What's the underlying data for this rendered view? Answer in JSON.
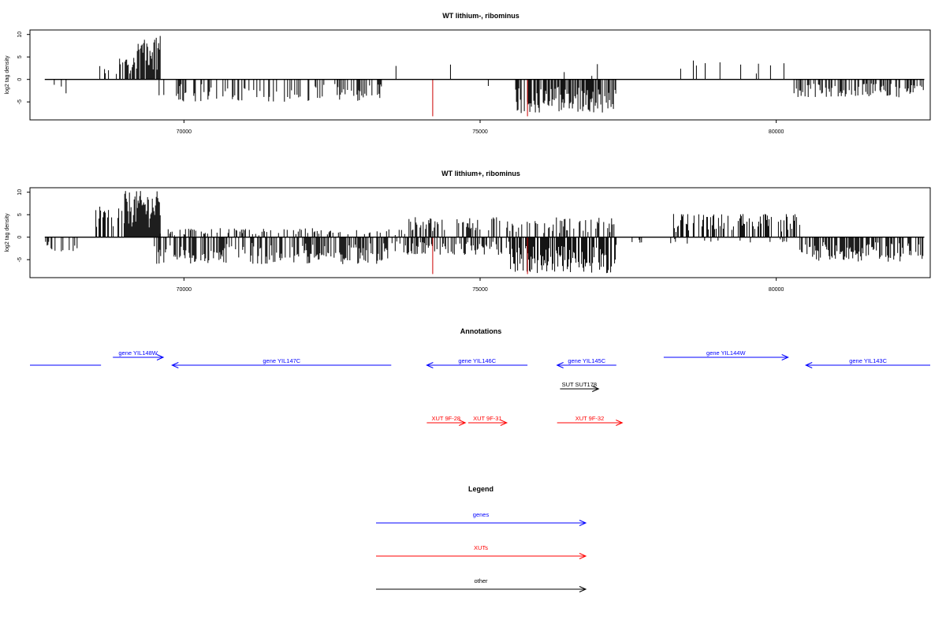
{
  "chart_data": [
    {
      "type": "bar",
      "title": "WT lithium-, ribominus",
      "ylabel": "log2 tag density",
      "xlim": [
        67400,
        82600
      ],
      "ylim": [
        -9,
        11
      ],
      "x_ticks": [
        70000,
        75000,
        80000
      ],
      "y_ticks": [
        -5,
        0,
        5,
        10
      ],
      "grid": false,
      "zero_line": true,
      "highlight_color": "#cc0000",
      "bar_color": "#000000",
      "series": [
        {
          "name": "plus strand",
          "segments": [
            {
              "from": 68500,
              "to": 68900,
              "max": 3.2,
              "density": 0.25
            },
            {
              "from": 68900,
              "to": 69200,
              "max": 5.5,
              "density": 0.5
            },
            {
              "from": 69200,
              "to": 69600,
              "max": 10.2,
              "density": 0.95
            },
            {
              "from": 73700,
              "to": 73900,
              "max": 3.0,
              "density": 0.05
            },
            {
              "from": 76300,
              "to": 77000,
              "max": 2.2,
              "density": 0.05
            },
            {
              "from": 78200,
              "to": 80300,
              "max": 4.0,
              "density": 0.04
            }
          ]
        },
        {
          "name": "minus strand",
          "segments": [
            {
              "from": 67400,
              "to": 68200,
              "max": 3.3,
              "density": 0.05
            },
            {
              "from": 69500,
              "to": 73400,
              "max": 5.0,
              "density": 0.3
            },
            {
              "from": 74300,
              "to": 75500,
              "max": 2.0,
              "density": 0.02
            },
            {
              "from": 75600,
              "to": 77300,
              "max": 7.5,
              "density": 0.7
            },
            {
              "from": 80300,
              "to": 82600,
              "max": 4.0,
              "density": 0.45
            }
          ]
        }
      ],
      "highlights": [
        {
          "x": 74200,
          "value": -8.2
        },
        {
          "x": 75800,
          "value": -8.2
        }
      ],
      "spikes": [
        {
          "x": 73580,
          "value": 3.0
        },
        {
          "x": 74500,
          "value": 3.3
        },
        {
          "x": 76980,
          "value": 3.4
        },
        {
          "x": 78600,
          "value": 4.2
        },
        {
          "x": 78800,
          "value": 3.6
        },
        {
          "x": 79050,
          "value": 3.8
        },
        {
          "x": 79400,
          "value": 3.3
        },
        {
          "x": 79700,
          "value": 3.5
        }
      ]
    },
    {
      "type": "bar",
      "title": "WT lithium+, ribominus",
      "ylabel": "log2 tag density",
      "xlim": [
        67400,
        82600
      ],
      "ylim": [
        -9,
        11
      ],
      "x_ticks": [
        70000,
        75000,
        80000
      ],
      "y_ticks": [
        -5,
        0,
        5,
        10
      ],
      "grid": false,
      "zero_line": true,
      "highlight_color": "#cc0000",
      "bar_color": "#000000",
      "series": [
        {
          "name": "plus strand",
          "segments": [
            {
              "from": 68500,
              "to": 69000,
              "max": 6.8,
              "density": 0.6
            },
            {
              "from": 69000,
              "to": 69600,
              "max": 10.3,
              "density": 0.95
            },
            {
              "from": 69600,
              "to": 73800,
              "max": 2.0,
              "density": 0.25
            },
            {
              "from": 73800,
              "to": 77300,
              "max": 4.5,
              "density": 0.35
            },
            {
              "from": 78200,
              "to": 80400,
              "max": 5.2,
              "density": 0.5
            }
          ]
        },
        {
          "name": "minus strand",
          "segments": [
            {
              "from": 67400,
              "to": 68200,
              "max": 3.3,
              "density": 0.3
            },
            {
              "from": 69500,
              "to": 73500,
              "max": 6.0,
              "density": 0.55
            },
            {
              "from": 73500,
              "to": 75500,
              "max": 4.0,
              "density": 0.4
            },
            {
              "from": 75500,
              "to": 77300,
              "max": 8.0,
              "density": 0.8
            },
            {
              "from": 77300,
              "to": 80400,
              "max": 1.5,
              "density": 0.08
            },
            {
              "from": 80400,
              "to": 82600,
              "max": 5.5,
              "density": 0.65
            }
          ]
        }
      ],
      "highlights": [
        {
          "x": 74200,
          "value": -8.2
        },
        {
          "x": 75800,
          "value": -8.2
        }
      ],
      "spikes": []
    }
  ],
  "annotations": {
    "title": "Annotations",
    "xlim": [
      67400,
      82600
    ],
    "features": [
      {
        "label": "",
        "start": 67400,
        "end": 68600,
        "strand": "+",
        "row": 1,
        "category": "gene",
        "clipped": true
      },
      {
        "label": "gene YIL148W",
        "start": 68800,
        "end": 69650,
        "strand": "+",
        "row": 0,
        "category": "gene"
      },
      {
        "label": "gene YIL147C",
        "start": 69800,
        "end": 73500,
        "strand": "-",
        "row": 1,
        "category": "gene"
      },
      {
        "label": "gene YIL146C",
        "start": 74100,
        "end": 75800,
        "strand": "-",
        "row": 1,
        "category": "gene"
      },
      {
        "label": "gene YIL145C",
        "start": 76300,
        "end": 77300,
        "strand": "-",
        "row": 1,
        "category": "gene"
      },
      {
        "label": "gene YIL144W",
        "start": 78100,
        "end": 80200,
        "strand": "+",
        "row": 0,
        "category": "gene"
      },
      {
        "label": "gene YIL143C",
        "start": 80500,
        "end": 82600,
        "strand": "-",
        "row": 1,
        "category": "gene"
      },
      {
        "label": "SUT SUT178",
        "start": 76350,
        "end": 77000,
        "strand": "+",
        "row": 2,
        "category": "other"
      },
      {
        "label": "XUT 9F-28",
        "start": 74100,
        "end": 74750,
        "strand": "+",
        "row": 3,
        "category": "xut"
      },
      {
        "label": "XUT 9F-31",
        "start": 74800,
        "end": 75450,
        "strand": "+",
        "row": 3,
        "category": "xut"
      },
      {
        "label": "XUT 9F-32",
        "start": 76300,
        "end": 77400,
        "strand": "+",
        "row": 3,
        "category": "xut"
      }
    ]
  },
  "legend": {
    "title": "Legend",
    "items": [
      {
        "label": "genes",
        "color": "#0000ff"
      },
      {
        "label": "XUTs",
        "color": "#ff0000"
      },
      {
        "label": "other",
        "color": "#000000"
      }
    ]
  },
  "colors": {
    "gene": "#0000ff",
    "xut": "#ff0000",
    "other": "#000000"
  }
}
